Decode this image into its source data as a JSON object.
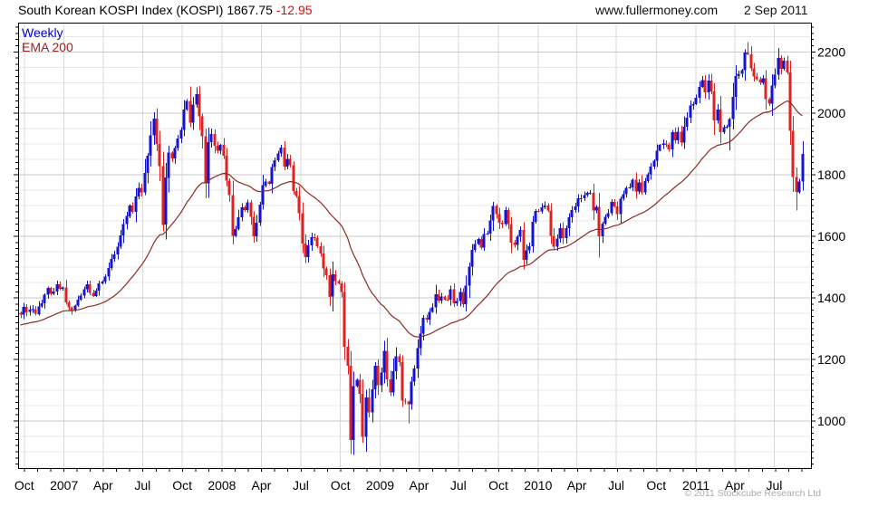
{
  "header": {
    "title": "South Korean KOSPI Index (KOSPI) 1867.75",
    "change": "-12.95",
    "website": "www.fullermoney.com",
    "date": "2 Sep 2011"
  },
  "legend": {
    "series1": "Weekly",
    "series2": "EMA 200"
  },
  "footer": {
    "copyright": "© 2011 Stockcube Research Ltd"
  },
  "colors": {
    "up": "#1414cc",
    "down": "#dd2222",
    "ema": "#8e2a24",
    "change_text": "#cc1111",
    "grid_minor": "#e7e7e7",
    "grid_major": "#c9c9c9",
    "grid_vert": "#d9d9d9",
    "axis": "#000000",
    "copyright_text": "#ababab"
  },
  "chart_data": {
    "type": "candlestick",
    "timeframe": "weekly",
    "title": "South Korean KOSPI Index (KOSPI)",
    "last_price": 1867.75,
    "last_change": -12.95,
    "ylim": [
      847,
      2295
    ],
    "y_ticks": [
      2200,
      2000,
      1800,
      1600,
      1400,
      1200,
      1000
    ],
    "grid_step": 50,
    "x_ticks": [
      {
        "label": "Oct",
        "week": 1.3
      },
      {
        "label": "2007",
        "week": 14.4
      },
      {
        "label": "Apr",
        "week": 27.3
      },
      {
        "label": "Jul",
        "week": 40.3
      },
      {
        "label": "Oct",
        "week": 53.4
      },
      {
        "label": "2008",
        "week": 66.5
      },
      {
        "label": "Apr",
        "week": 79.5
      },
      {
        "label": "Jul",
        "week": 92.5
      },
      {
        "label": "Oct",
        "week": 105.6
      },
      {
        "label": "2009",
        "week": 118.7
      },
      {
        "label": "Apr",
        "week": 131.5
      },
      {
        "label": "Jul",
        "week": 144.5
      },
      {
        "label": "Oct",
        "week": 157.7
      },
      {
        "label": "2010",
        "week": 170.8
      },
      {
        "label": "Apr",
        "week": 183.6
      },
      {
        "label": "Jul",
        "week": 196.6
      },
      {
        "label": "Oct",
        "week": 209.8
      },
      {
        "label": "2011",
        "week": 222.9
      },
      {
        "label": "Apr",
        "week": 235.7
      },
      {
        "label": "Jul",
        "week": 248.7
      }
    ],
    "month_tick": {
      "first_week": 1.3,
      "step": 4.3478,
      "count": 60
    },
    "first_open": 1352,
    "closes": [
      1346,
      1371,
      1354,
      1362,
      1364,
      1348,
      1373,
      1383,
      1410,
      1432,
      1414,
      1421,
      1445,
      1429,
      1434,
      1385,
      1369,
      1360,
      1375,
      1395,
      1407,
      1428,
      1445,
      1417,
      1406,
      1424,
      1448,
      1453,
      1469,
      1497,
      1527,
      1542,
      1567,
      1603,
      1640,
      1666,
      1700,
      1680,
      1730,
      1758,
      1743,
      1806,
      1863,
      1929,
      1983,
      1901,
      1828,
      1638,
      1791,
      1873,
      1853,
      1888,
      1919,
      1946,
      2013,
      2041,
      1970,
      2028,
      2063,
      1990,
      1926,
      1772,
      1906,
      1933,
      1895,
      1878,
      1897,
      1863,
      1782,
      1734,
      1602,
      1624,
      1662,
      1694,
      1686,
      1711,
      1663,
      1600,
      1645,
      1704,
      1766,
      1778,
      1771,
      1825,
      1848,
      1870,
      1889,
      1827,
      1852,
      1832,
      1747,
      1731,
      1675,
      1577,
      1533,
      1571,
      1597,
      1594,
      1568,
      1545,
      1496,
      1474,
      1404,
      1477,
      1455,
      1448,
      1419,
      1241,
      1180,
      938,
      1113,
      1134,
      1088,
      948,
      1076,
      1028,
      1103,
      1180,
      1117,
      1157,
      1228,
      1135,
      1093,
      1162,
      1210,
      1192,
      1066,
      1063,
      1055,
      1128,
      1171,
      1237,
      1284,
      1336,
      1329,
      1354,
      1369,
      1412,
      1391,
      1404,
      1395,
      1394,
      1428,
      1383,
      1390,
      1420,
      1379,
      1440,
      1502,
      1557,
      1576,
      1591,
      1563,
      1608,
      1609,
      1652,
      1699,
      1673,
      1644,
      1640,
      1686,
      1640,
      1580,
      1572,
      1599,
      1621,
      1524,
      1555,
      1568,
      1647,
      1683,
      1682,
      1695,
      1701,
      1684,
      1602,
      1567,
      1593,
      1627,
      1595,
      1627,
      1662,
      1686,
      1697,
      1724,
      1724,
      1734,
      1742,
      1742,
      1684,
      1696,
      1600,
      1641,
      1664,
      1675,
      1712,
      1698,
      1672,
      1723,
      1738,
      1758,
      1759,
      1784,
      1746,
      1776,
      1743,
      1780,
      1802,
      1827,
      1846,
      1879,
      1897,
      1902,
      1897,
      1883,
      1939,
      1913,
      1941,
      1905,
      1957,
      1986,
      2026,
      2030,
      2051,
      2086,
      2108,
      2069,
      2107,
      2072,
      1977,
      2013,
      1939,
      1955,
      1956,
      1981,
      2054,
      2121,
      2128,
      2141,
      2198,
      2192,
      2147,
      2120,
      2111,
      2100,
      2114,
      2047,
      2031,
      2090,
      2126,
      2180,
      2145,
      2171,
      2133,
      1943,
      1793,
      1744,
      1778,
      1868
    ],
    "wick_overrides": {
      "high": {
        "44": 2004,
        "58": 2085,
        "225": 2121,
        "240": 2231
      },
      "low": {
        "47": 1616,
        "70": 1574,
        "109": 892,
        "113": 930,
        "128": 992,
        "191": 1532,
        "234": 1880,
        "256": 1685
      }
    },
    "ema": {
      "label": "EMA 200",
      "period": 40,
      "seed": 1310
    }
  }
}
